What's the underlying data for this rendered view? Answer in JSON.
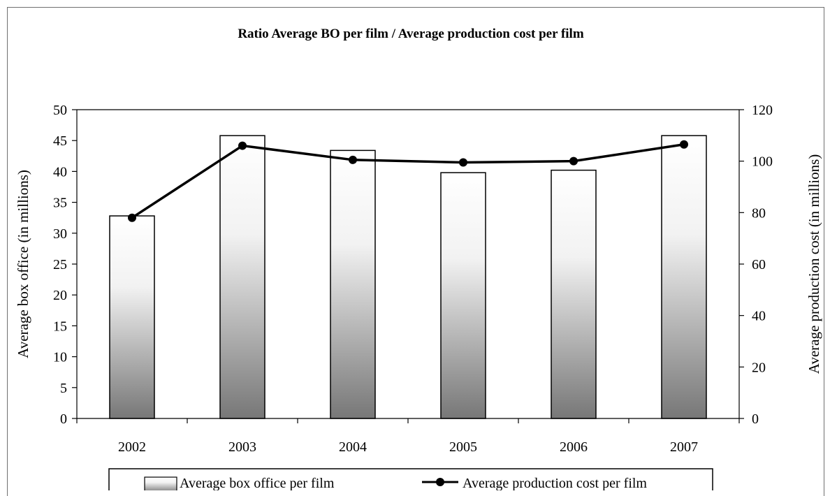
{
  "chart_data": {
    "type": "bar",
    "title": "Ratio Average BO per film / Average production cost per film",
    "categories": [
      "2002",
      "2003",
      "2004",
      "2005",
      "2006",
      "2007"
    ],
    "series": [
      {
        "name": "Average box office per film",
        "type": "bar",
        "axis": "left",
        "values": [
          32.8,
          45.8,
          43.4,
          39.8,
          40.2,
          45.8
        ]
      },
      {
        "name": "Average production cost per film",
        "type": "line",
        "axis": "right",
        "values": [
          78,
          106,
          100.5,
          99.5,
          100,
          106.5
        ]
      }
    ],
    "ylabel": "Average box office (in millions)",
    "ylim": [
      0,
      50
    ],
    "yticks": [
      "0",
      "5",
      "10",
      "15",
      "20",
      "25",
      "30",
      "35",
      "40",
      "45",
      "50"
    ],
    "y2label": "Average production cost (in millions)",
    "y2lim": [
      0,
      120
    ],
    "y2ticks": [
      "0",
      "20",
      "40",
      "60",
      "80",
      "100",
      "120"
    ],
    "grid": false,
    "legend_position": "bottom"
  }
}
